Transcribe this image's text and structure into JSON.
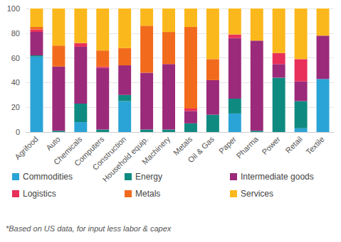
{
  "chart_data": {
    "type": "bar",
    "stacked": true,
    "grid": true,
    "legend": "bottom",
    "footnote": "*Based on US data, for input less labor & capex",
    "categories": [
      "Agrifood",
      "Auto",
      "Chemicals",
      "Computers",
      "Construction",
      "Household equip.",
      "Machinery",
      "Metals",
      "Oil & Gas",
      "Paper",
      "Pharma",
      "Power",
      "Retail",
      "Textile"
    ],
    "ylim": [
      0,
      100
    ],
    "yticks": [
      0,
      20,
      40,
      60,
      80,
      100
    ],
    "series": [
      {
        "name": "Commodities",
        "color": "#2aa4d6",
        "values": [
          61,
          0,
          8,
          0,
          25,
          0,
          0,
          0,
          0,
          15,
          0,
          0,
          3,
          43
        ]
      },
      {
        "name": "Energy",
        "color": "#0f8a80",
        "values": [
          1,
          1,
          15,
          2,
          5,
          2,
          2,
          7,
          14,
          12,
          1,
          44,
          22,
          0
        ]
      },
      {
        "name": "Intermediate goods",
        "color": "#9b2a7a",
        "values": [
          19,
          52,
          46,
          50,
          24,
          46,
          53,
          10,
          28,
          49,
          73,
          11,
          16,
          35
        ]
      },
      {
        "name": "Logistics",
        "color": "#e8305a",
        "values": [
          2,
          0,
          3,
          1,
          0,
          0,
          0,
          2,
          0,
          3,
          0,
          9,
          18,
          0
        ]
      },
      {
        "name": "Metals",
        "color": "#f26b1d",
        "values": [
          2,
          17,
          0,
          13,
          14,
          38,
          26,
          66,
          17,
          0,
          0,
          0,
          0,
          0
        ]
      },
      {
        "name": "Services",
        "color": "#fbb81c",
        "values": [
          15,
          30,
          28,
          34,
          32,
          14,
          19,
          15,
          41,
          21,
          26,
          36,
          41,
          22
        ]
      }
    ]
  }
}
